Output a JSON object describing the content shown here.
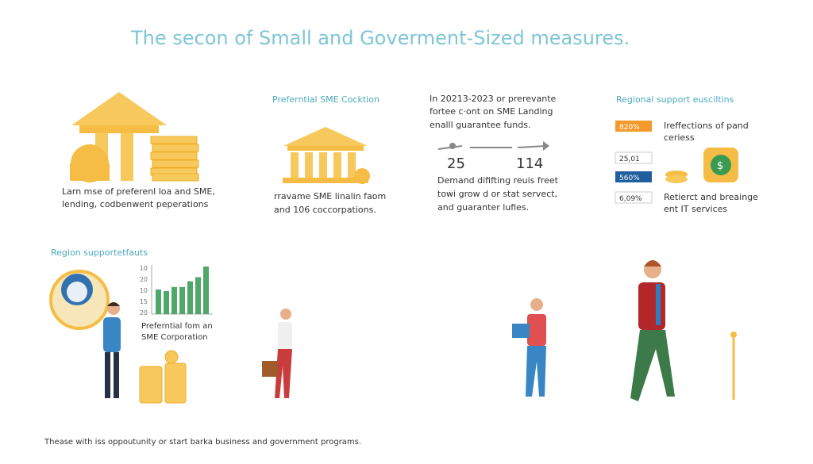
{
  "title": "The secon of Small and Goverment-Sized measures.",
  "panel1": {
    "caption": [
      "Larn mse of preferenl loa and SME,",
      "lending, codbenwent peperations"
    ]
  },
  "panel2": {
    "heading": "Preferntial SME Cocktion",
    "caption": [
      "rravame SME linalin faom",
      "and 106 coccorpations."
    ]
  },
  "panel3": {
    "intro": [
      "In 20213-2023 or prerevante",
      "fortee c·ont on SME Landing",
      "enalll guarantee funds."
    ],
    "numbers": [
      "25",
      "114"
    ],
    "body": [
      "Demand dififting reuis freet",
      "towi grow d or stat servect,",
      "and guaranter lufies."
    ]
  },
  "panel4": {
    "heading": "Regional support eusciltins",
    "badges": [
      "820%",
      "25,01",
      "560%",
      "6,09%"
    ],
    "text1": [
      "Ireffections of pand",
      "ceriess"
    ],
    "text2": [
      "Retierct and breainge",
      "ent IT services"
    ]
  },
  "region": {
    "heading": "Region supportetfauts",
    "axis_labels": [
      "10",
      "20",
      "10",
      "15",
      "20"
    ],
    "bars": [
      30,
      28,
      33,
      33,
      40,
      45,
      58
    ],
    "caption": [
      "Preferntial fom an",
      "SME Corporation"
    ]
  },
  "footer": "Thease with iss oppoutunity or start barka business and government programs."
}
